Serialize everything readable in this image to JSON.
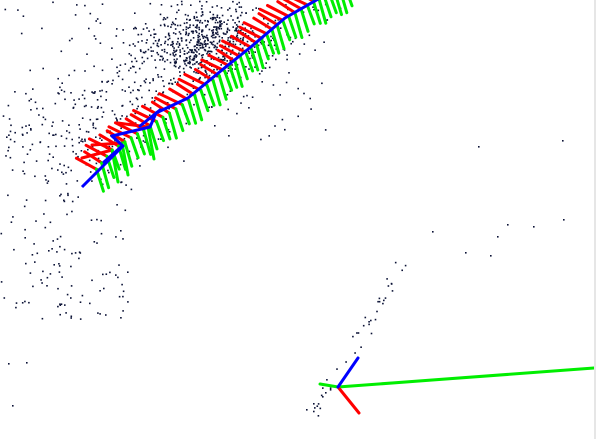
{
  "scene": {
    "background_color": "#ffffff",
    "point_color": "#0b1236",
    "axis_colors": {
      "x": "#ff0000",
      "y": "#00ee00",
      "z": "#0000ff"
    },
    "icon": "3d-point-cloud-viewer"
  }
}
